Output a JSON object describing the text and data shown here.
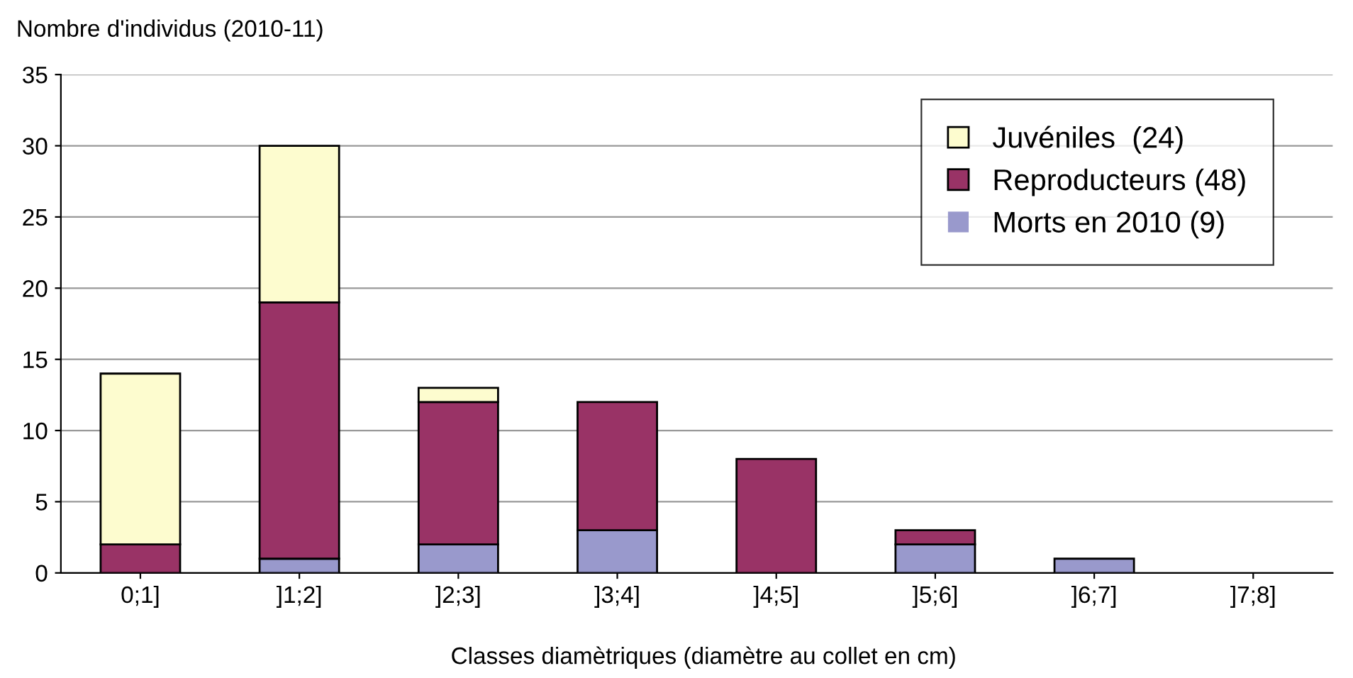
{
  "chart_data": {
    "type": "bar",
    "stacked": true,
    "ylabel": "Nombre d'individus (2010-11)",
    "xlabel": "Classes diamètriques (diamètre au collet en cm)",
    "categories": [
      "0;1]",
      "]1;2]",
      "]2;3]",
      "]3;4]",
      "]4;5]",
      "]5;6]",
      "]6;7]",
      "]7;8]"
    ],
    "series": [
      {
        "name": "Morts en 2010 (9)",
        "color": "#9999cc",
        "values": [
          0,
          1,
          2,
          3,
          0,
          2,
          1,
          0
        ]
      },
      {
        "name": "Reproducteurs (48)",
        "color": "#993366",
        "values": [
          2,
          18,
          10,
          9,
          8,
          1,
          0,
          0
        ]
      },
      {
        "name": "Juvéniles  (24)",
        "color": "#fdfccf",
        "values": [
          12,
          11,
          1,
          0,
          0,
          0,
          0,
          0
        ]
      }
    ],
    "ylim": [
      0,
      35
    ],
    "yticks": [
      0,
      5,
      10,
      15,
      20,
      25,
      30,
      35
    ],
    "grid": "y",
    "legend": "top right"
  }
}
